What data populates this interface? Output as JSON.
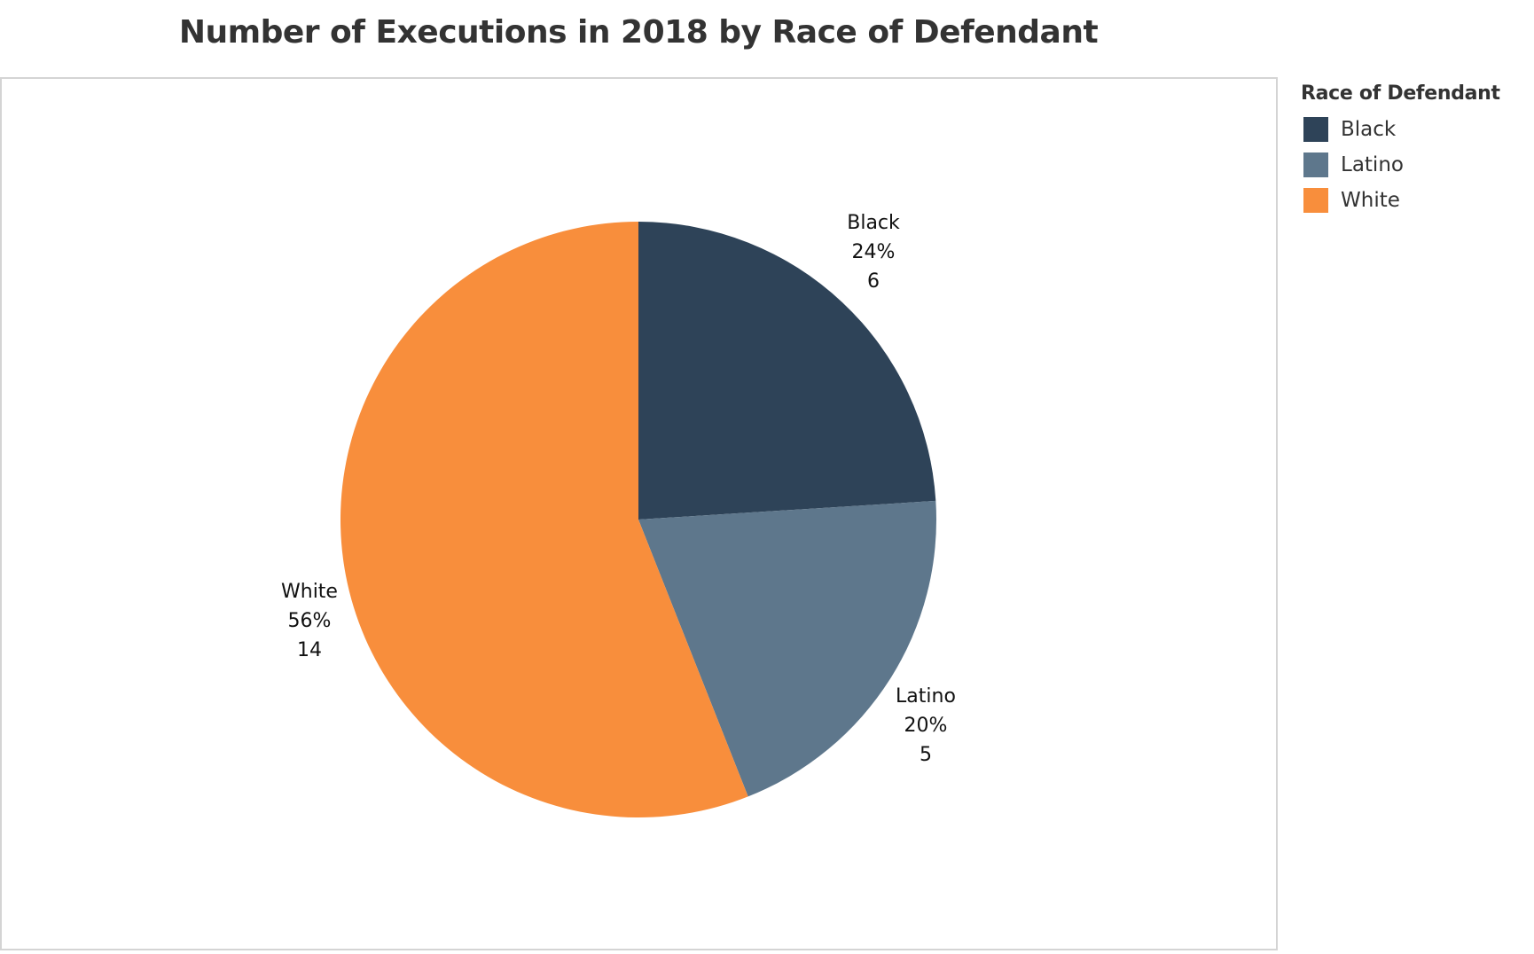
{
  "chart_data": {
    "type": "pie",
    "title": "Number of Executions in 2018 by Race of Defendant",
    "legend_title": "Race of Defendant",
    "legend_position": "top-right",
    "categories": [
      "Black",
      "Latino",
      "White"
    ],
    "values": [
      6,
      5,
      14
    ],
    "percent_labels": [
      "24%",
      "20%",
      "56%"
    ],
    "count_labels": [
      "6",
      "5",
      "14"
    ],
    "colors": [
      "#2e4358",
      "#5e778c",
      "#f88e3c"
    ],
    "start_angle": "12 o'clock",
    "direction": "clockwise"
  }
}
